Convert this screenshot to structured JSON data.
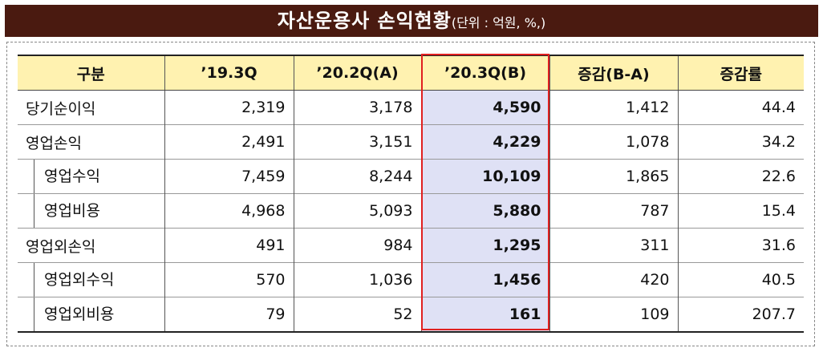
{
  "header": {
    "title": "자산운용사 손익현황",
    "unit": "(단위 : 억원, %,)"
  },
  "table": {
    "columns": [
      "구분",
      "’19.3Q",
      "’20.2Q(A)",
      "’20.3Q(B)",
      "증감(B-A)",
      "증감률"
    ],
    "rows": [
      {
        "label": "당기순이익",
        "values": [
          "2,319",
          "3,178",
          "4,590",
          "1,412",
          "44.4"
        ]
      },
      {
        "label": "영업손익",
        "values": [
          "2,491",
          "3,151",
          "4,229",
          "1,078",
          "34.2"
        ],
        "children": [
          {
            "label": "영업수익",
            "values": [
              "7,459",
              "8,244",
              "10,109",
              "1,865",
              "22.6"
            ]
          },
          {
            "label": "영업비용",
            "values": [
              "4,968",
              "5,093",
              "5,880",
              "787",
              "15.4"
            ]
          }
        ]
      },
      {
        "label": "영업외손익",
        "values": [
          "491",
          "984",
          "1,295",
          "311",
          "31.6"
        ],
        "children": [
          {
            "label": "영업외수익",
            "values": [
              "570",
              "1,036",
              "1,456",
              "420",
              "40.5"
            ]
          },
          {
            "label": "영업외비용",
            "values": [
              "79",
              "52",
              "161",
              "109",
              "207.7"
            ]
          }
        ]
      }
    ]
  }
}
